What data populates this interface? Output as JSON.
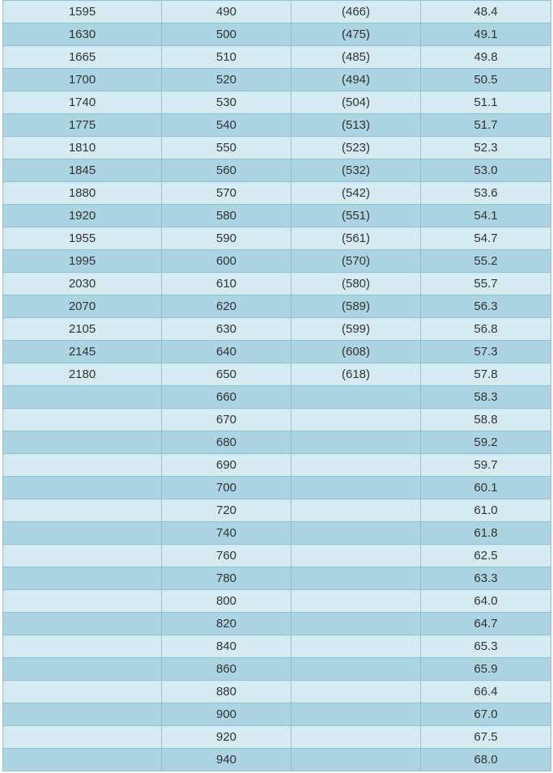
{
  "colors": {
    "row_light": "#d6eaf2",
    "row_dark": "#acd4e2",
    "border": "#8fc2d4",
    "text": "#333333"
  },
  "table": {
    "rows": [
      [
        "1595",
        "490",
        "(466)",
        "48.4"
      ],
      [
        "1630",
        "500",
        "(475)",
        "49.1"
      ],
      [
        "1665",
        "510",
        "(485)",
        "49.8"
      ],
      [
        "1700",
        "520",
        "(494)",
        "50.5"
      ],
      [
        "1740",
        "530",
        "(504)",
        "51.1"
      ],
      [
        "1775",
        "540",
        "(513)",
        "51.7"
      ],
      [
        "1810",
        "550",
        "(523)",
        "52.3"
      ],
      [
        "1845",
        "560",
        "(532)",
        "53.0"
      ],
      [
        "1880",
        "570",
        "(542)",
        "53.6"
      ],
      [
        "1920",
        "580",
        "(551)",
        "54.1"
      ],
      [
        "1955",
        "590",
        "(561)",
        "54.7"
      ],
      [
        "1995",
        "600",
        "(570)",
        "55.2"
      ],
      [
        "2030",
        "610",
        "(580)",
        "55.7"
      ],
      [
        "2070",
        "620",
        "(589)",
        "56.3"
      ],
      [
        "2105",
        "630",
        "(599)",
        "56.8"
      ],
      [
        "2145",
        "640",
        "(608)",
        "57.3"
      ],
      [
        "2180",
        "650",
        "(618)",
        "57.8"
      ],
      [
        "",
        "660",
        "",
        "58.3"
      ],
      [
        "",
        "670",
        "",
        "58.8"
      ],
      [
        "",
        "680",
        "",
        "59.2"
      ],
      [
        "",
        "690",
        "",
        "59.7"
      ],
      [
        "",
        "700",
        "",
        "60.1"
      ],
      [
        "",
        "720",
        "",
        "61.0"
      ],
      [
        "",
        "740",
        "",
        "61.8"
      ],
      [
        "",
        "760",
        "",
        "62.5"
      ],
      [
        "",
        "780",
        "",
        "63.3"
      ],
      [
        "",
        "800",
        "",
        "64.0"
      ],
      [
        "",
        "820",
        "",
        "64.7"
      ],
      [
        "",
        "840",
        "",
        "65.3"
      ],
      [
        "",
        "860",
        "",
        "65.9"
      ],
      [
        "",
        "880",
        "",
        "66.4"
      ],
      [
        "",
        "900",
        "",
        "67.0"
      ],
      [
        "",
        "920",
        "",
        "67.5"
      ],
      [
        "",
        "940",
        "",
        "68.0"
      ]
    ]
  }
}
